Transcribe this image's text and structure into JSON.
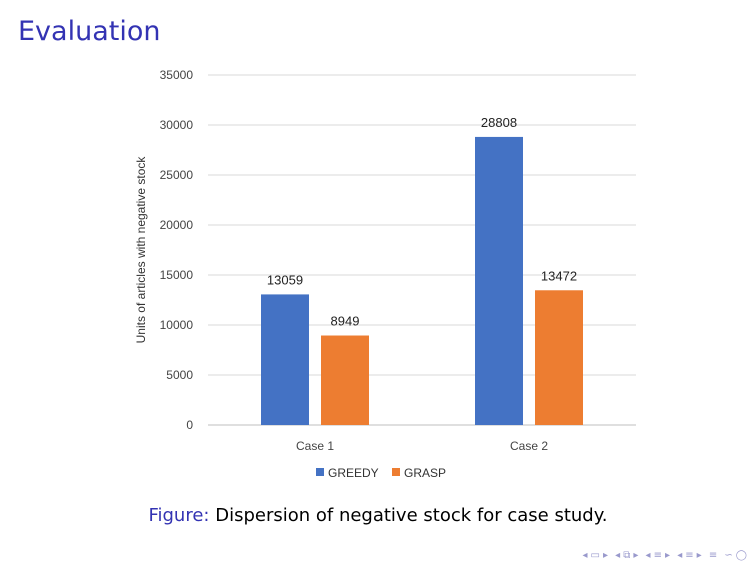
{
  "slide": {
    "title": "Evaluation",
    "caption_prefix": "Figure:",
    "caption_text": " Dispersion of negative stock for case study."
  },
  "chart_data": {
    "type": "bar",
    "categories": [
      "Case 1",
      "Case 2"
    ],
    "series": [
      {
        "name": "GREEDY",
        "values": [
          13059,
          28808
        ],
        "color": "#4472c4"
      },
      {
        "name": "GRASP",
        "values": [
          8949,
          13472
        ],
        "color": "#ed7d31"
      }
    ],
    "ylabel": "Units of articles with negative stock",
    "ylim": [
      0,
      35000
    ],
    "yticks": [
      0,
      5000,
      10000,
      15000,
      20000,
      25000,
      30000,
      35000
    ],
    "grid": true,
    "legend": "bottom",
    "data_labels": true
  },
  "nav": {
    "icons": [
      "nav-prev-icon",
      "nav-next-icon",
      "frame-prev-icon",
      "frame-next-icon",
      "section-prev-icon",
      "section-next-icon",
      "subsection-prev-icon",
      "subsection-next-icon",
      "align-icon",
      "search-icon"
    ]
  }
}
